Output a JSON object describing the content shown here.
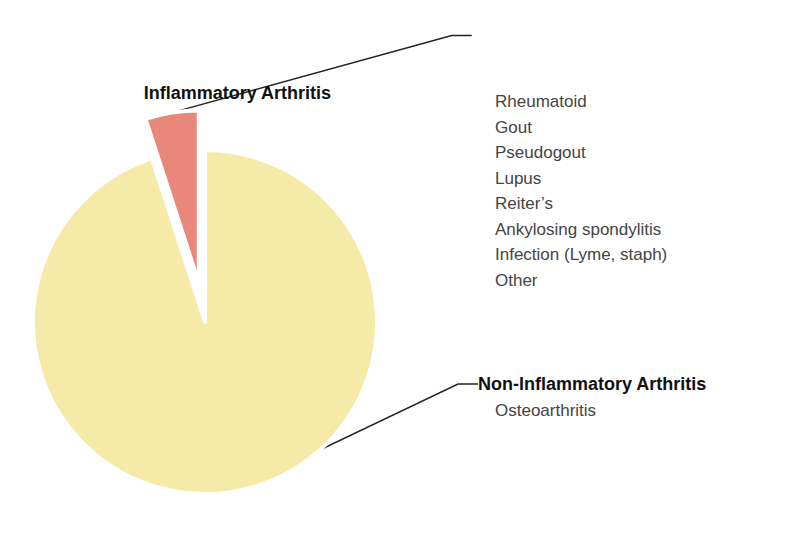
{
  "chart_data": {
    "type": "pie",
    "categories": [
      "Inflammatory Arthritis",
      "Non-Inflammatory Arthritis"
    ],
    "values": [
      5,
      95
    ],
    "colors": [
      "#e8877a",
      "#f6eaa9"
    ],
    "details": [
      [
        "Rheumatoid",
        "Gout",
        "Pseudogout",
        "Lupus",
        "Reiter’s",
        "Ankylosing spondylitis",
        "Infection (Lyme, staph)",
        "Other"
      ],
      [
        "Osteoarthritis"
      ]
    ]
  }
}
